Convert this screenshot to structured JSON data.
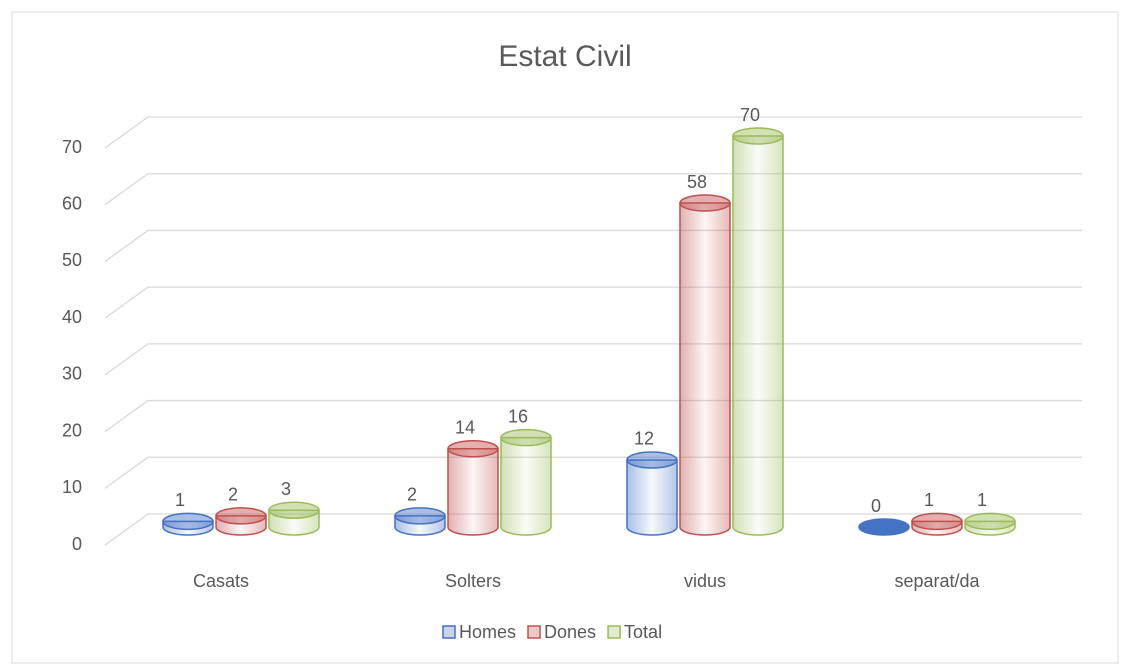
{
  "chart_data": {
    "type": "bar3d",
    "title": "Estat Civil",
    "categories": [
      "Casats",
      "Solters",
      "vidus",
      "separat/da"
    ],
    "series": [
      {
        "name": "Homes",
        "color": "#4472c4",
        "values": [
          1,
          2,
          12,
          0
        ]
      },
      {
        "name": "Dones",
        "color": "#c0504d",
        "values": [
          2,
          14,
          58,
          1
        ]
      },
      {
        "name": "Total",
        "color": "#9bbb59",
        "values": [
          3,
          16,
          70,
          1
        ]
      }
    ],
    "ylim": [
      0,
      70
    ],
    "yticks": [
      0,
      10,
      20,
      30,
      40,
      50,
      60,
      70
    ],
    "grid": true,
    "legend": "bottom"
  }
}
